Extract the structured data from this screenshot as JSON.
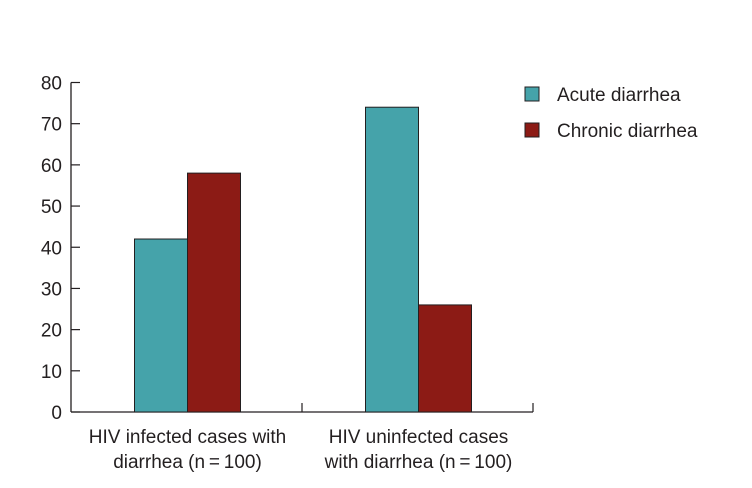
{
  "chart_data": {
    "type": "bar",
    "categories": [
      [
        "HIV infected cases with",
        "diarrhea (n = 100)"
      ],
      [
        "HIV uninfected cases",
        "with diarrhea (n = 100)"
      ]
    ],
    "series": [
      {
        "name": "Acute diarrhea",
        "values": [
          42,
          74
        ],
        "color": "#45a3aa"
      },
      {
        "name": "Chronic diarrhea",
        "values": [
          58,
          26
        ],
        "color": "#8c1b15"
      }
    ],
    "ylim": [
      0,
      80
    ],
    "yticks": [
      "0",
      "10",
      "20",
      "30",
      "40",
      "50",
      "60",
      "70",
      "80"
    ],
    "xlabel": "",
    "ylabel": "",
    "title": "",
    "grid": false,
    "legend": "top-right"
  }
}
